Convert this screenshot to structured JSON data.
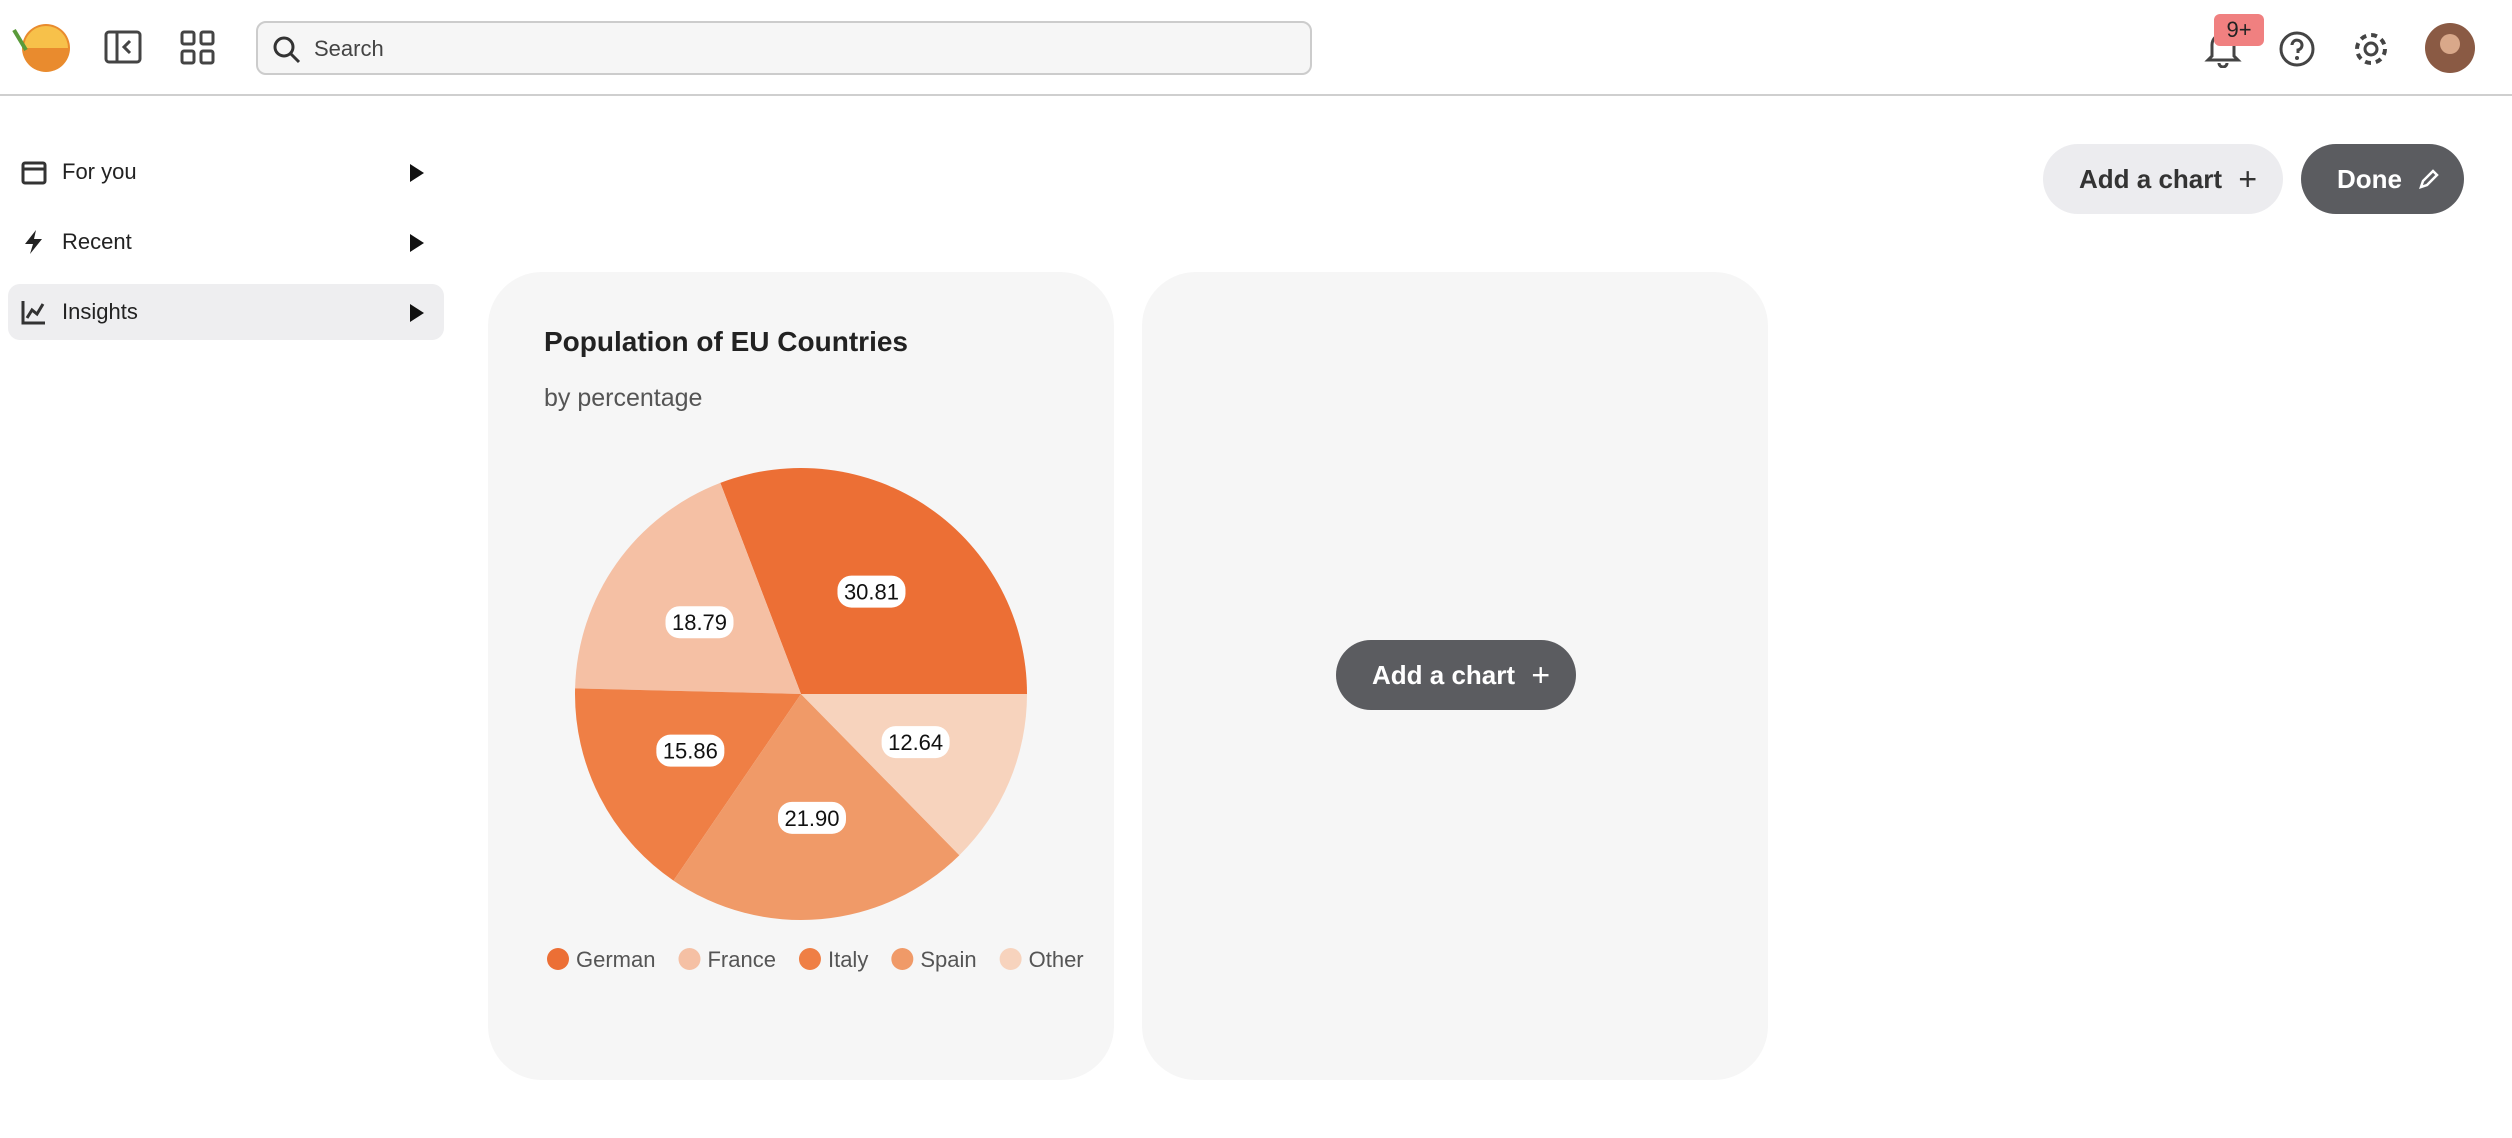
{
  "header": {
    "search_placeholder": "Search",
    "notification_badge": "9+"
  },
  "sidebar": {
    "items": [
      "For you",
      "Recent",
      "Insights"
    ]
  },
  "toolbar": {
    "add_chart": "Add a chart",
    "done": "Done"
  },
  "empty_card": {
    "add_chart": "Add a chart"
  },
  "chart_data": {
    "type": "pie",
    "title": "Population of EU Countries",
    "subtitle": "by percentage",
    "categories": [
      "German",
      "France",
      "Italy",
      "Spain",
      "Other"
    ],
    "values": [
      30.81,
      18.79,
      15.86,
      21.9,
      12.64
    ],
    "value_labels": [
      "30.81",
      "18.79",
      "15.86",
      "21.90",
      "12.64"
    ],
    "colors": [
      "#ec6f35",
      "#f5c0a4",
      "#ef7f45",
      "#f09a68",
      "#f7d3bd"
    ]
  }
}
